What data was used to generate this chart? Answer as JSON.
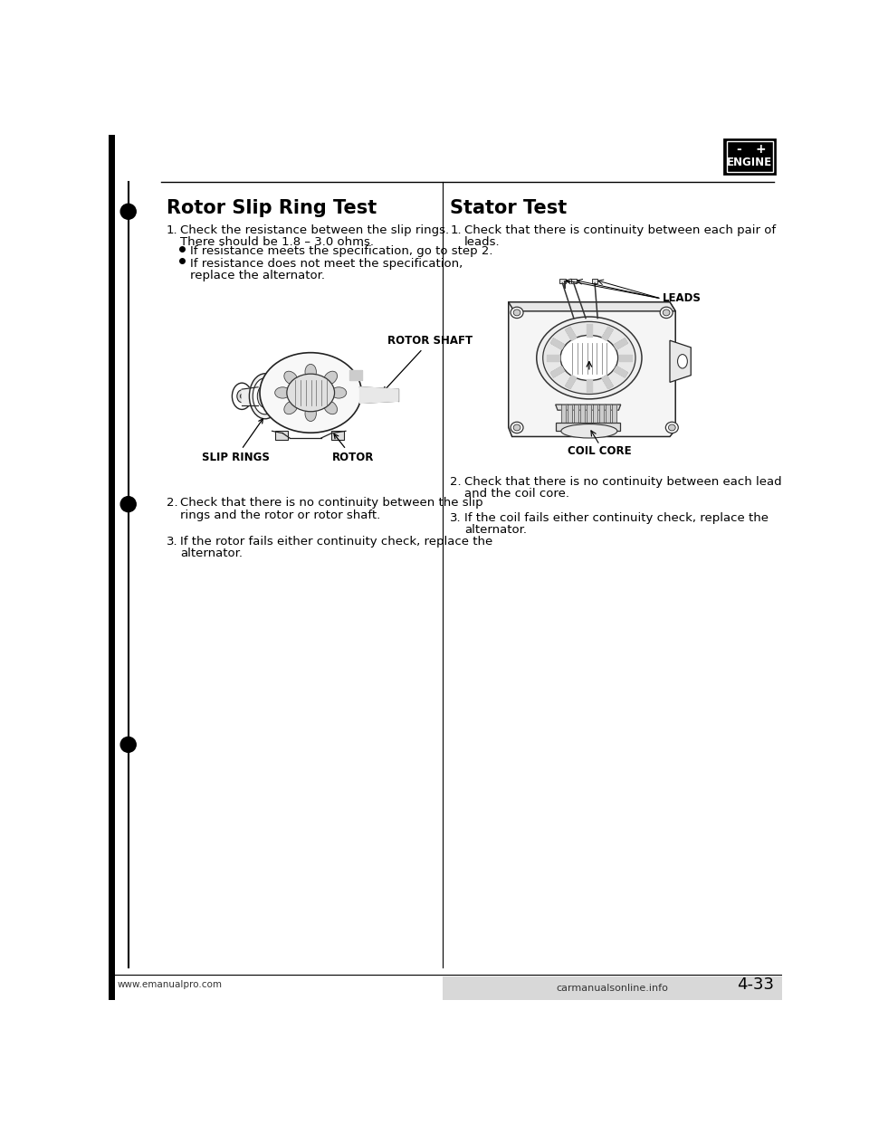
{
  "page_bg": "#ffffff",
  "title_left": "Rotor Slip Ring Test",
  "title_right": "Stator Test",
  "engine_label": "ENGINE",
  "engine_minus": "-",
  "engine_plus": "+",
  "left_col": {
    "step1_num": "1.",
    "step1_line1": "Check the resistance between the slip rings.",
    "step1_line2": "There should be 1.8 – 3.0 ohms.",
    "step1_bullet1": "If resistance meets the specification, go to step 2.",
    "step1_bullet2": "If resistance does not meet the specification,",
    "step1_bullet2b": "replace the alternator.",
    "diagram1_label_top": "ROTOR SHAFT",
    "diagram1_label_bl": "SLIP RINGS",
    "diagram1_label_br": "ROTOR",
    "step2_num": "2.",
    "step2_line1": "Check that there is no continuity between the slip",
    "step2_line2": "rings and the rotor or rotor shaft.",
    "step3_num": "3.",
    "step3_line1": "If the rotor fails either continuity check, replace the",
    "step3_line2": "alternator."
  },
  "right_col": {
    "step1_num": "1.",
    "step1_line1": "Check that there is continuity between each pair of",
    "step1_line2": "leads.",
    "diagram_label_top": "LEADS",
    "diagram_label_bot": "COIL CORE",
    "step2_num": "2.",
    "step2_line1": "Check that there is no continuity between each lead",
    "step2_line2": "and the coil core.",
    "step3_num": "3.",
    "step3_line1": "If the coil fails either continuity check, replace the",
    "step3_line2": "alternator."
  },
  "footer_left": "www.emanualpro.com",
  "footer_right": "carmanualsonline.info",
  "page_num": "4-33"
}
